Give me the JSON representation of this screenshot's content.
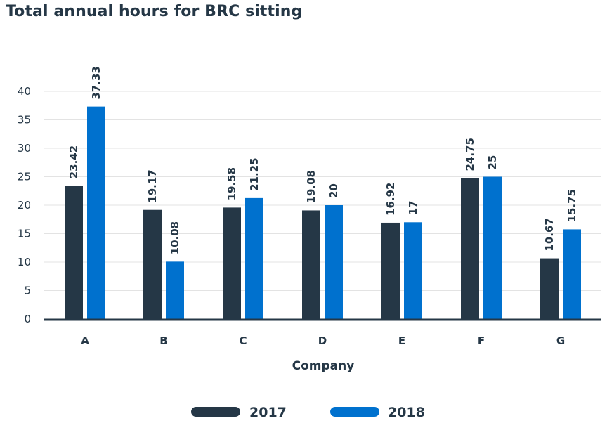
{
  "title": "Total annual hours for BRC sitting",
  "chart_data": {
    "type": "bar",
    "title": "Total annual hours for BRC sitting",
    "xlabel": "Company",
    "ylabel": "",
    "ylim": [
      0,
      40
    ],
    "yticks": [
      0,
      5,
      10,
      15,
      20,
      25,
      30,
      35,
      40
    ],
    "categories": [
      "A",
      "B",
      "C",
      "D",
      "E",
      "F",
      "G"
    ],
    "series": [
      {
        "name": "2017",
        "color": "#253746",
        "values": [
          23.42,
          19.17,
          19.58,
          19.08,
          16.92,
          24.75,
          10.67
        ]
      },
      {
        "name": "2018",
        "color": "#0071ce",
        "values": [
          37.33,
          10.08,
          21.25,
          20,
          17,
          25,
          15.75
        ]
      }
    ],
    "grid": true,
    "legend": "bottom"
  }
}
